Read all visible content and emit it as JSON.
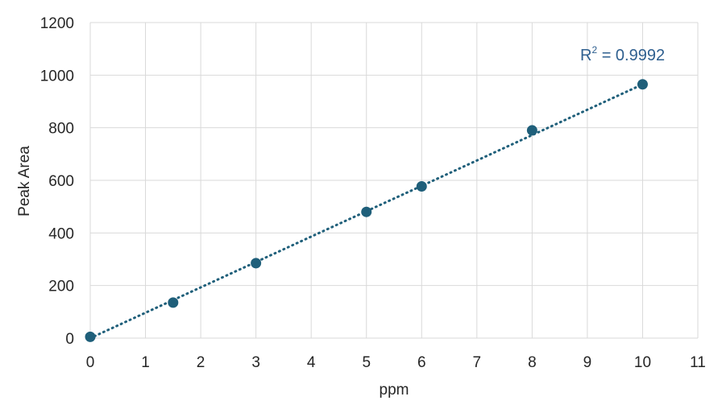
{
  "chart_data": {
    "type": "scatter",
    "xlabel": "ppm",
    "ylabel": "Peak Area",
    "xlim": [
      0,
      11
    ],
    "ylim": [
      0,
      1200
    ],
    "xticks": [
      "0",
      "1",
      "2",
      "3",
      "4",
      "5",
      "6",
      "7",
      "8",
      "9",
      "10",
      "11"
    ],
    "yticks": [
      "0",
      "200",
      "400",
      "600",
      "800",
      "1000",
      "1200"
    ],
    "grid": true,
    "series": [
      {
        "x": [
          0,
          1.5,
          3,
          5,
          6,
          8,
          10
        ],
        "y": [
          5,
          135,
          285,
          480,
          577,
          790,
          965
        ],
        "color": "#1f5f7a"
      }
    ],
    "trendline": {
      "style": "dotted",
      "color": "#1f5f7a",
      "x_range": [
        0,
        10
      ],
      "slope": 96.5,
      "intercept": 0
    },
    "annotation": {
      "r2_prefix": "R",
      "r2_sup": "2",
      "r2_value": " = 0.9992"
    }
  }
}
